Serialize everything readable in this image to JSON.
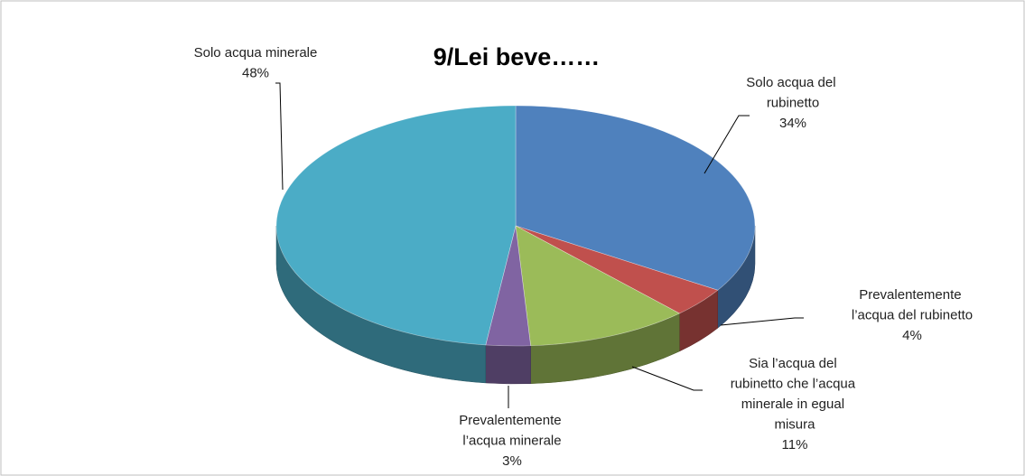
{
  "chart_data": {
    "type": "pie",
    "title": "9/Lei beve……",
    "categories": [
      "Solo acqua del rubinetto",
      "Prevalentemente l’acqua del rubinetto",
      "Sia l’acqua del rubinetto che l’acqua minerale in egual misura",
      "Prevalentemente l’acqua minerale",
      "Solo acqua minerale"
    ],
    "values": [
      34,
      4,
      11,
      3,
      48
    ],
    "value_labels": [
      "34%",
      "4%",
      "11%",
      "3%",
      "48%"
    ],
    "colors": [
      "#4f81bd",
      "#c0504d",
      "#9bbb59",
      "#8064a2",
      "#4bacc6"
    ]
  }
}
